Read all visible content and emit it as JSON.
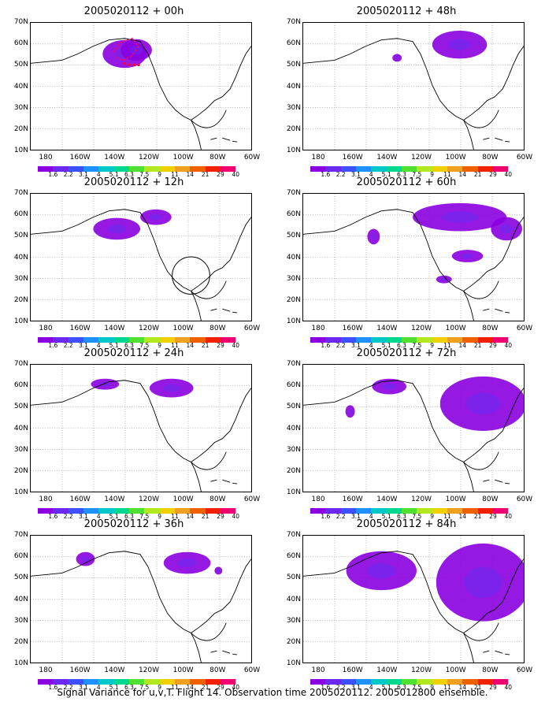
{
  "panels": [
    {
      "title": "2005020112 + 00h",
      "col": 0,
      "row": 0,
      "blobs": [
        [
          120,
          40,
          28,
          18
        ],
        [
          135,
          35,
          20,
          14
        ]
      ],
      "marker": true,
      "circle": false
    },
    {
      "title": "2005020112 + 12h",
      "col": 0,
      "row": 1,
      "blobs": [
        [
          110,
          45,
          30,
          14
        ],
        [
          160,
          30,
          20,
          10
        ]
      ],
      "marker": false,
      "circle": true
    },
    {
      "title": "2005020112 + 24h",
      "col": 0,
      "row": 2,
      "blobs": [
        [
          95,
          25,
          18,
          7
        ],
        [
          180,
          30,
          28,
          12
        ]
      ],
      "marker": false,
      "circle": false
    },
    {
      "title": "2005020112 + 36h",
      "col": 0,
      "row": 3,
      "blobs": [
        [
          70,
          30,
          12,
          9
        ],
        [
          200,
          35,
          30,
          14
        ],
        [
          240,
          45,
          5,
          5
        ]
      ],
      "marker": false,
      "circle": false
    },
    {
      "title": "2005020112 + 48h",
      "col": 1,
      "row": 0,
      "blobs": [
        [
          200,
          28,
          35,
          18
        ],
        [
          120,
          45,
          6,
          5
        ]
      ],
      "marker": false,
      "circle": false
    },
    {
      "title": "2005020112 + 60h",
      "col": 1,
      "row": 1,
      "blobs": [
        [
          200,
          30,
          60,
          18
        ],
        [
          260,
          45,
          20,
          15
        ],
        [
          210,
          80,
          20,
          8
        ],
        [
          180,
          110,
          10,
          5
        ],
        [
          90,
          55,
          8,
          10
        ]
      ],
      "marker": false,
      "circle": false
    },
    {
      "title": "2005020112 + 72h",
      "col": 1,
      "row": 2,
      "blobs": [
        [
          110,
          28,
          22,
          10
        ],
        [
          230,
          50,
          55,
          35
        ],
        [
          60,
          60,
          6,
          8
        ]
      ],
      "marker": false,
      "circle": false
    },
    {
      "title": "2005020112 + 84h",
      "col": 1,
      "row": 3,
      "blobs": [
        [
          100,
          45,
          45,
          25
        ],
        [
          230,
          60,
          60,
          50
        ]
      ],
      "marker": false,
      "circle": false
    }
  ],
  "y_labels": [
    "70N",
    "60N",
    "50N",
    "40N",
    "30N",
    "20N",
    "10N"
  ],
  "x_labels": [
    "180",
    "160W",
    "140W",
    "120W",
    "100W",
    "80W",
    "60W"
  ],
  "colorbar": {
    "colors": [
      "#8a00e0",
      "#6a28f0",
      "#3c50ff",
      "#1e90ff",
      "#00c8c8",
      "#00d890",
      "#50e030",
      "#b4e81e",
      "#f0d000",
      "#f0a020",
      "#f06000",
      "#f02000",
      "#f0006e"
    ],
    "labels": [
      "1.6",
      "2.2",
      "3.1",
      "4",
      "5.1",
      "6.3",
      "7.5",
      "9",
      "11",
      "14",
      "21",
      "29",
      "40"
    ]
  },
  "footer": "Signal Variance for u,v,T. Flight 14. Observation time 2005020112. 2005012800 ensemble."
}
